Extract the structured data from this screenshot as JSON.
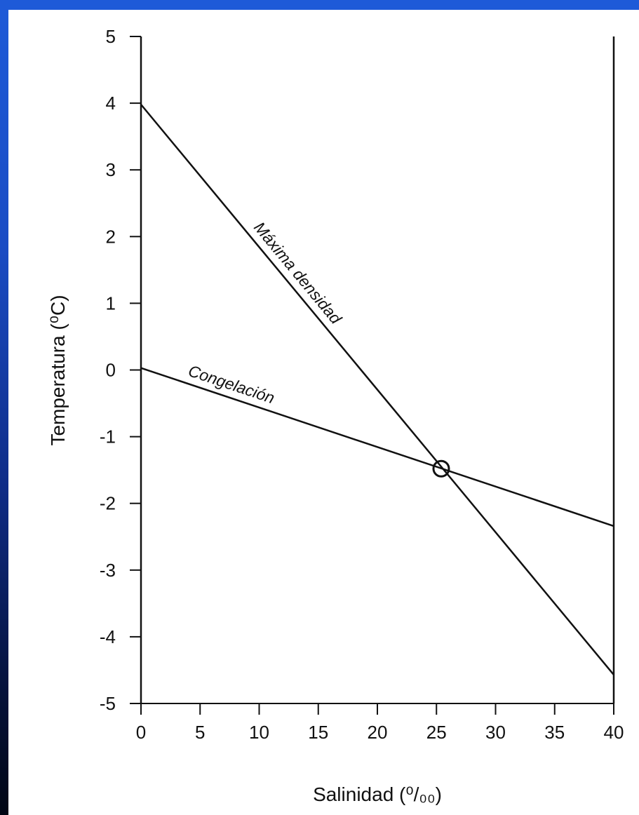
{
  "chart_data": {
    "type": "line",
    "title": "",
    "xlabel": "Salinidad (⁰/₀₀)",
    "ylabel": "Temperatura (⁰C)",
    "xlim": [
      0,
      40
    ],
    "ylim": [
      -5,
      5
    ],
    "xticks": [
      0,
      5,
      10,
      15,
      20,
      25,
      30,
      35,
      40
    ],
    "yticks": [
      5,
      4,
      3,
      2,
      1,
      0,
      -1,
      -2,
      -3,
      -4,
      -5
    ],
    "grid": false,
    "legend": "none",
    "series": [
      {
        "name": "Máxima densidad",
        "color": "#111111",
        "x": [
          0,
          40
        ],
        "y": [
          3.98,
          -4.57
        ]
      },
      {
        "name": "Congelación",
        "color": "#111111",
        "x": [
          0,
          40
        ],
        "y": [
          0.03,
          -2.34
        ]
      }
    ],
    "annotations": [
      {
        "type": "circle-marker",
        "x": 25.4,
        "y": -1.48
      }
    ]
  },
  "colors": {
    "background_top": "#1e5ad8",
    "background_bottom": "#010614",
    "panel": "#ffffff",
    "ink": "#111111"
  }
}
